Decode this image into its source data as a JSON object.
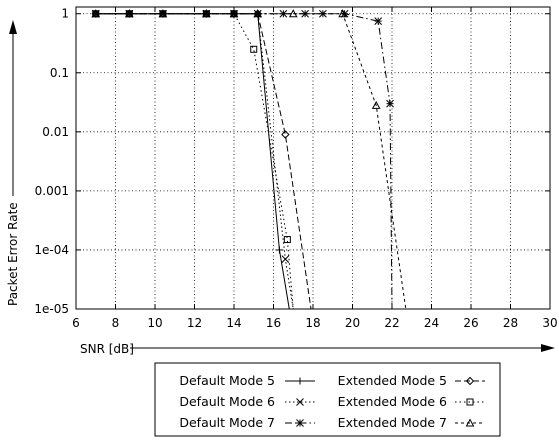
{
  "chart_data": {
    "type": "line",
    "xlabel": "SNR [dB]",
    "ylabel": "Packet Error Rate",
    "xlim": [
      6,
      30
    ],
    "ylim": [
      1e-05,
      1.3
    ],
    "yscale": "log",
    "grid": true,
    "legend_position": "bottom",
    "x_ticks": [
      6,
      8,
      10,
      12,
      14,
      16,
      18,
      20,
      22,
      24,
      26,
      28,
      30
    ],
    "y_ticks": [
      {
        "value": 1,
        "label": "1"
      },
      {
        "value": 0.1,
        "label": "0.1"
      },
      {
        "value": 0.01,
        "label": "0.01"
      },
      {
        "value": 0.001,
        "label": "0.001"
      },
      {
        "value": 0.0001,
        "label": "1e-04"
      },
      {
        "value": 1e-05,
        "label": "1e-05"
      }
    ],
    "series": [
      {
        "name": "Default Mode 5",
        "marker": "plus",
        "dash": "",
        "x": [
          7,
          8.7,
          10.4,
          12.6,
          14,
          15.2,
          16.3,
          16.8
        ],
        "y": [
          1,
          1,
          1,
          1,
          1,
          1,
          0.0001,
          1e-05
        ]
      },
      {
        "name": "Default Mode 6",
        "marker": "cross",
        "dash": "1.5,2.5",
        "x": [
          7,
          8.7,
          10.4,
          12.6,
          14,
          15.2,
          16.6,
          17.0
        ],
        "y": [
          1,
          1,
          1,
          1,
          1,
          1,
          7e-05,
          1e-05
        ]
      },
      {
        "name": "Default Mode 7",
        "marker": "star",
        "dash": "7,3,1.5,3",
        "x": [
          7,
          8.7,
          10.4,
          12.6,
          14,
          15.2,
          16.5,
          17.6,
          18.5,
          19.6,
          21.3,
          21.9,
          22.0
        ],
        "y": [
          1,
          1,
          1,
          1,
          1,
          1,
          1,
          1,
          1,
          1,
          0.75,
          0.03,
          1e-05
        ]
      },
      {
        "name": "Extended Mode 5",
        "marker": "diamond",
        "dash": "6,3",
        "x": [
          7,
          8.7,
          10.4,
          12.6,
          14,
          15.2,
          16.6,
          17.9
        ],
        "y": [
          1,
          1,
          1,
          1,
          1,
          1,
          0.009,
          1e-05
        ]
      },
      {
        "name": "Extended Mode 6",
        "marker": "square",
        "dash": "1.5,3",
        "x": [
          7,
          8.7,
          10.4,
          12.6,
          14,
          15.0,
          16.7,
          17.0
        ],
        "y": [
          1,
          1,
          1,
          1,
          1,
          0.25,
          0.00015,
          1e-05
        ]
      },
      {
        "name": "Extended Mode 7",
        "marker": "triangle",
        "dash": "3,3",
        "x": [
          7,
          8.7,
          10.4,
          12.6,
          14,
          15.2,
          17.0,
          19.5,
          21.2,
          22.7
        ],
        "y": [
          1,
          1,
          1,
          1,
          1,
          1,
          1,
          1,
          0.028,
          1e-05
        ]
      }
    ]
  },
  "legend": {
    "labels": [
      "Default Mode 5",
      "Default Mode 6",
      "Default Mode 7",
      "Extended Mode 5",
      "Extended Mode 6",
      "Extended Mode 7"
    ]
  }
}
